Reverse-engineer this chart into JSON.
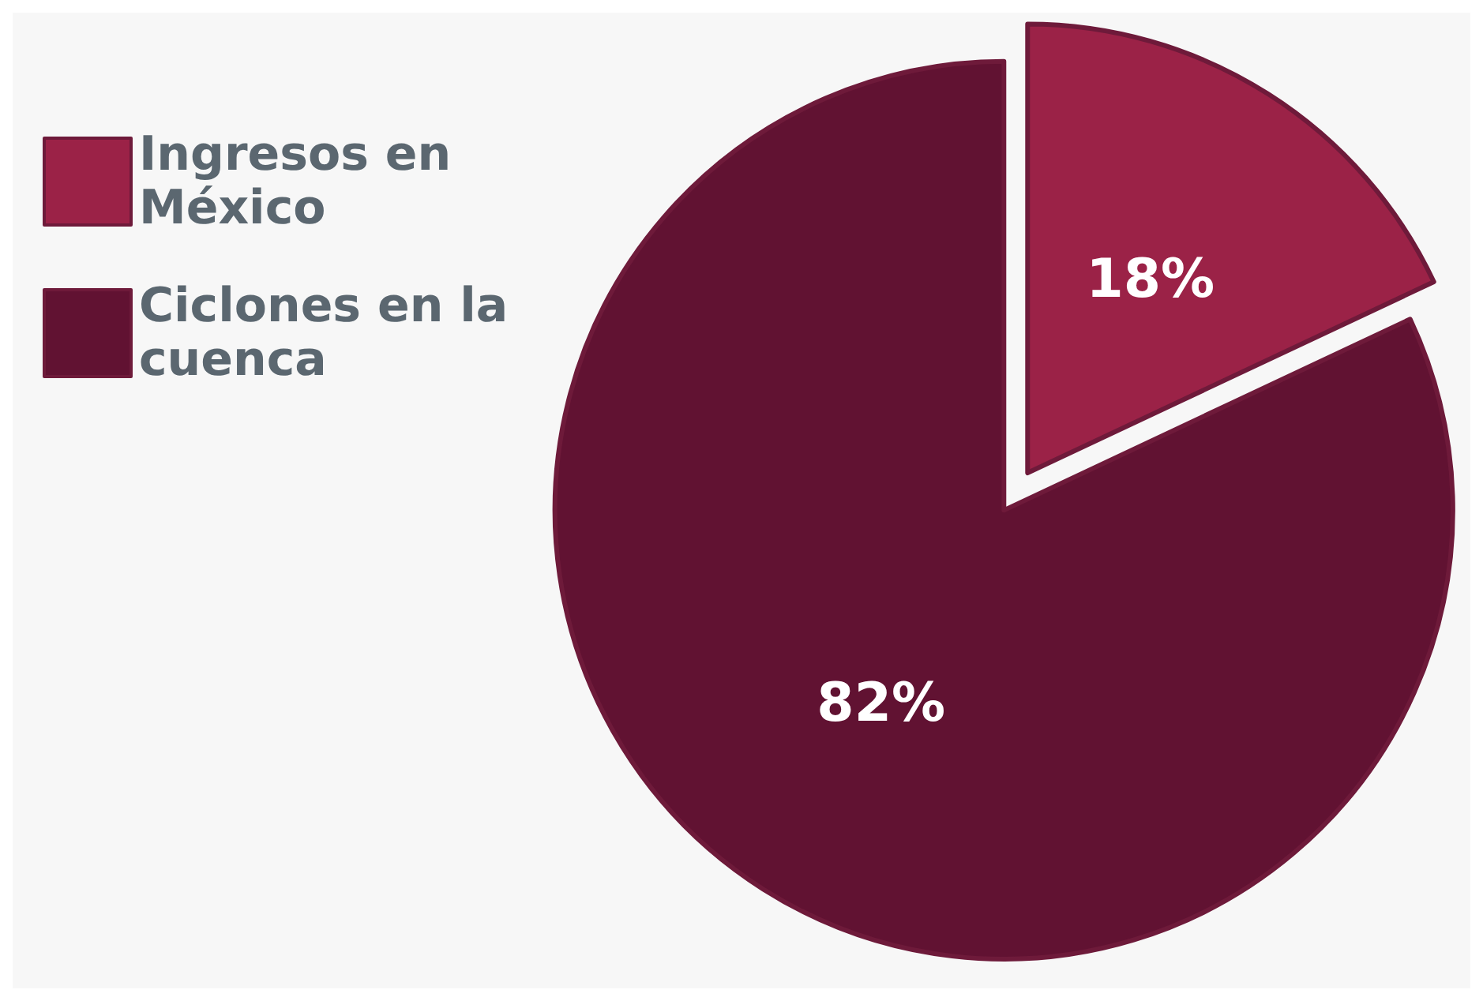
{
  "chart_data": {
    "type": "pie",
    "categories": [
      "Ingresos en México",
      "Ciclones en la cuenca"
    ],
    "values": [
      18,
      82
    ],
    "colors": [
      "#9b2247",
      "#611232"
    ],
    "value_labels": [
      "18%",
      "82%"
    ],
    "legend": "top left"
  }
}
